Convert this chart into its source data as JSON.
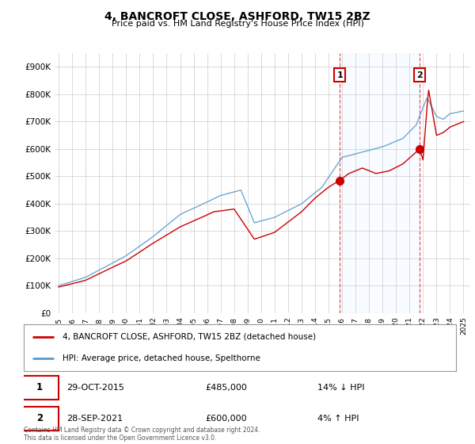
{
  "title": "4, BANCROFT CLOSE, ASHFORD, TW15 2BZ",
  "subtitle": "Price paid vs. HM Land Registry's House Price Index (HPI)",
  "ylabel_ticks": [
    "£0",
    "£100K",
    "£200K",
    "£300K",
    "£400K",
    "£500K",
    "£600K",
    "£700K",
    "£800K",
    "£900K"
  ],
  "ytick_values": [
    0,
    100000,
    200000,
    300000,
    400000,
    500000,
    600000,
    700000,
    800000,
    900000
  ],
  "ylim": [
    0,
    950000
  ],
  "sale1_date": "29-OCT-2015",
  "sale1_price": 485000,
  "sale1_hpi": "14% ↓ HPI",
  "sale1_year": 2015.83,
  "sale2_date": "28-SEP-2021",
  "sale2_price": 600000,
  "sale2_hpi": "4% ↑ HPI",
  "sale2_year": 2021.75,
  "legend_property": "4, BANCROFT CLOSE, ASHFORD, TW15 2BZ (detached house)",
  "legend_hpi": "HPI: Average price, detached house, Spelthorne",
  "footnote": "Contains HM Land Registry data © Crown copyright and database right 2024.\nThis data is licensed under the Open Government Licence v3.0.",
  "hpi_color": "#5599cc",
  "sale_color": "#cc0000",
  "shade_color": "#ddeeff",
  "grid_color": "#cccccc",
  "bg_color": "#ffffff",
  "annotation_box_color": "#cc0000"
}
